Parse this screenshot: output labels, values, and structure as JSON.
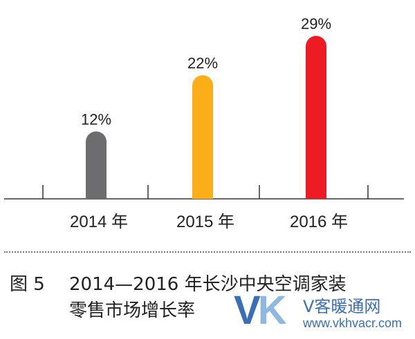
{
  "chart_data": {
    "type": "bar",
    "categories": [
      "2014 年",
      "2015 年",
      "2016 年"
    ],
    "values": [
      12,
      22,
      29
    ],
    "data_labels": [
      "12%",
      "22%",
      "29%"
    ],
    "colors": [
      "#6d6d6f",
      "#fbae17",
      "#ed1c24"
    ],
    "ylim": [
      0,
      30
    ],
    "grid": false,
    "legend": "none"
  },
  "caption": {
    "figure_number": "图 5",
    "title_line1": "2014—2016 年长沙中央空调家装",
    "title_line2": "零售市场增长率"
  },
  "watermark": {
    "logo": "VK",
    "logo_v": "V",
    "logo_k": "K",
    "name": "V客暖通网",
    "url": "www.vkhvacr.com"
  }
}
